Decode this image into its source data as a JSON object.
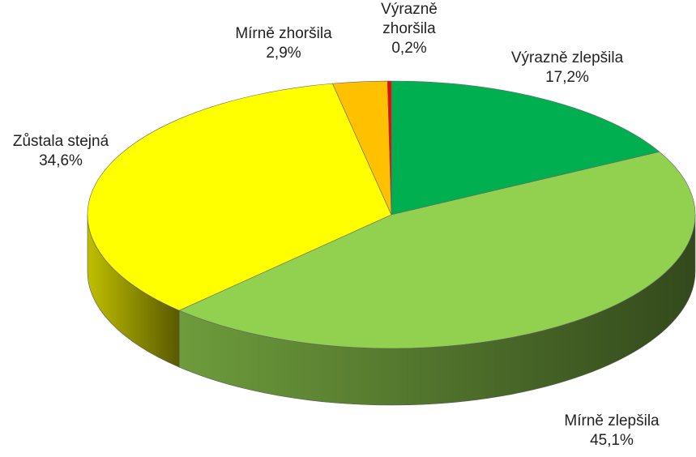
{
  "chart_data": {
    "type": "pie",
    "categories": [
      "Výrazně zlepšila",
      "Mírně zlepšila",
      "Zůstala stejná",
      "Mírně zhoršila",
      "Výrazně zhoršila"
    ],
    "values": [
      17.2,
      45.1,
      34.6,
      2.9,
      0.2
    ],
    "value_labels": [
      "17,2%",
      "45,1%",
      "34,6%",
      "2,9%",
      "0,2%"
    ],
    "colors": [
      "#00b050",
      "#92d050",
      "#ffff00",
      "#ffc000",
      "#ff0000"
    ]
  }
}
